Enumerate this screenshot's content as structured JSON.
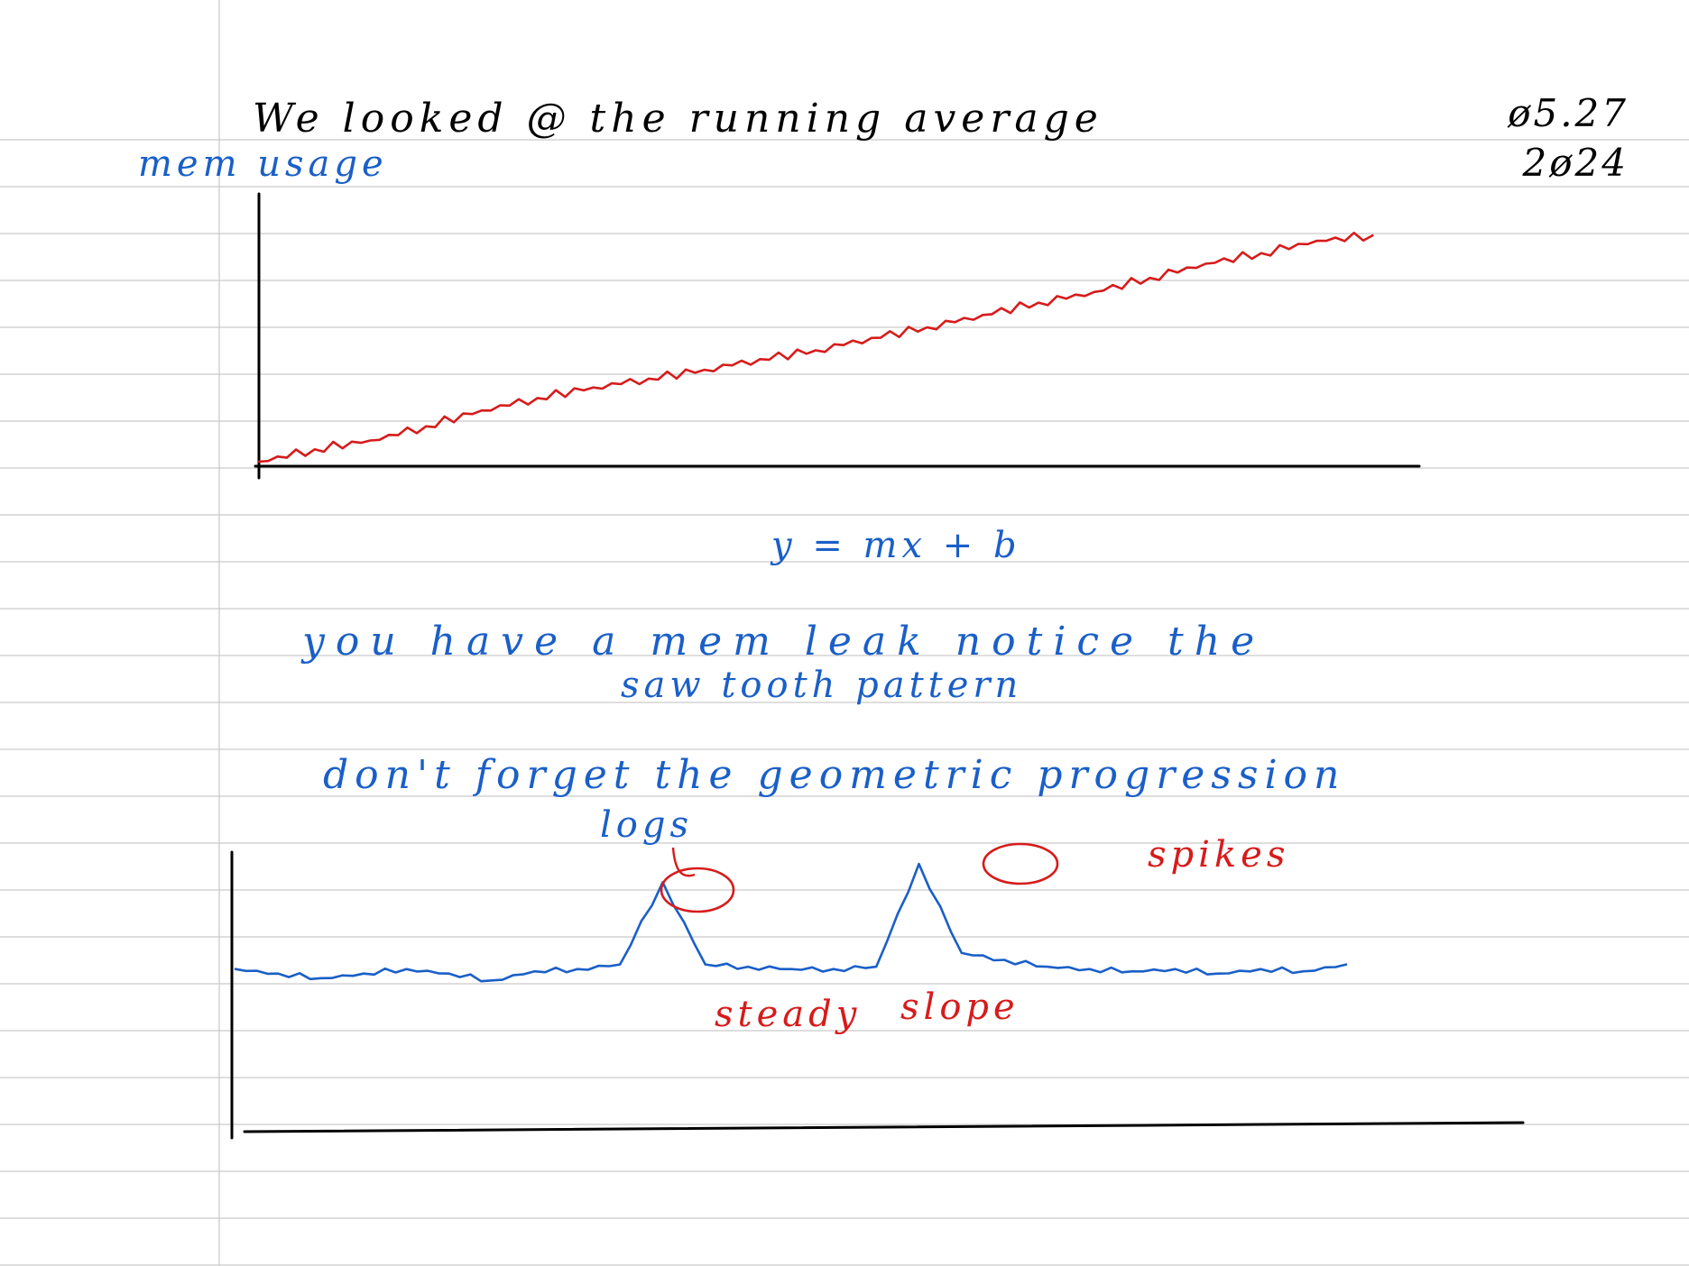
{
  "note": {
    "header_line": "We looked @ the running average",
    "date_line1": "ø5.27",
    "date_line2": "2ø24",
    "y_label": "mem usage",
    "equation": "y = mx + b",
    "comment_line1": "you have a mem leak notice the",
    "comment_line2": "saw tooth pattern",
    "comment_line3": "don't forget the geometric progression",
    "comment_line4": "logs",
    "annotation_spikes": "spikes",
    "annotation_steady": "steady",
    "annotation_slope": "slope"
  },
  "colors": {
    "ink_black": "#000000",
    "ink_blue": "#1a5fc8",
    "ink_red": "#d71b1b",
    "paper": "#ffffff",
    "ruling": "#c9c9c9"
  },
  "chart_data": [
    {
      "type": "line",
      "title": "",
      "xlabel": "",
      "ylabel": "mem usage",
      "grid": false,
      "series": [
        {
          "color": "#d71b1b",
          "shape": "rising sawtooth",
          "x": [
            0,
            1,
            2,
            3,
            4,
            5,
            6,
            7,
            8,
            9,
            10,
            11,
            12,
            13,
            14,
            15,
            16,
            17,
            18,
            19,
            20
          ],
          "values": [
            0,
            7,
            12,
            20,
            29,
            36,
            42,
            47,
            52,
            58,
            63,
            70,
            76,
            83,
            90,
            96,
            104,
            112,
            118,
            125,
            128
          ]
        }
      ],
      "xlim": [
        0,
        21
      ],
      "ylim": [
        0,
        150
      ]
    },
    {
      "type": "line",
      "title": "",
      "xlabel": "",
      "ylabel": "",
      "grid": false,
      "series": [
        {
          "color": "#1a5fc8",
          "shape": "flat with two spikes",
          "x": [
            0,
            1,
            2,
            3,
            4,
            5,
            6,
            7,
            8,
            9,
            10,
            11,
            12,
            13,
            14,
            15,
            16,
            17,
            18,
            19,
            20,
            21,
            22,
            23,
            24,
            25,
            26
          ],
          "values": [
            10,
            8,
            6,
            8,
            10,
            8,
            5,
            9,
            10,
            12,
            48,
            12,
            11,
            10,
            10,
            11,
            56,
            17,
            14,
            11,
            10,
            9,
            10,
            8,
            10,
            9,
            12
          ]
        }
      ],
      "annotations": [
        "spikes",
        "steady",
        "slope"
      ],
      "xlim": [
        0,
        26
      ],
      "ylim": [
        0,
        60
      ]
    }
  ]
}
